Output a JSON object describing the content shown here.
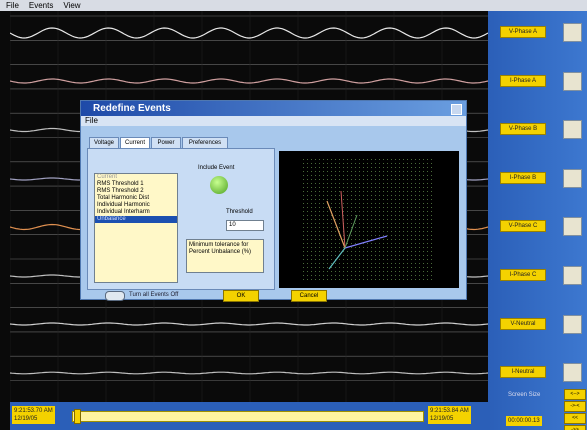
{
  "menu": [
    "File",
    "Events",
    "View"
  ],
  "channels": [
    "V-Phase A",
    "I-Phase A",
    "V-Phase B",
    "I-Phase B",
    "V-Phase C",
    "I-Phase C",
    "V-Neutral",
    "I-Neutral"
  ],
  "dialog": {
    "title": "Redefine Events",
    "menu": "File",
    "tabs": [
      "Voltage",
      "Current",
      "Power",
      "Preferences"
    ],
    "list": [
      "Current",
      "RMS Threshold 1",
      "RMS Threshold 2",
      "Total Harmonic Dist",
      "Individual Harmonic",
      "Individual Interharm",
      "Unbalance"
    ],
    "include_event": "Include Event",
    "threshold_label": "Threshold",
    "threshold_value": "10",
    "description": "Minimum tolerance for Percent Unbalance (%)",
    "toggle": "Turn all Events Off",
    "ok": "OK",
    "cancel": "Cancel"
  },
  "timeline": {
    "start_time": "9:21:53.70 AM",
    "start_date": "12/19/05",
    "end_time": "9:21:53.84 AM",
    "end_date": "12/19/05"
  },
  "screen_size": {
    "label": "Screen Size",
    "value": "00:00:00.13"
  },
  "nav_buttons": [
    "<-->",
    "->-<",
    "<<",
    "->>"
  ]
}
